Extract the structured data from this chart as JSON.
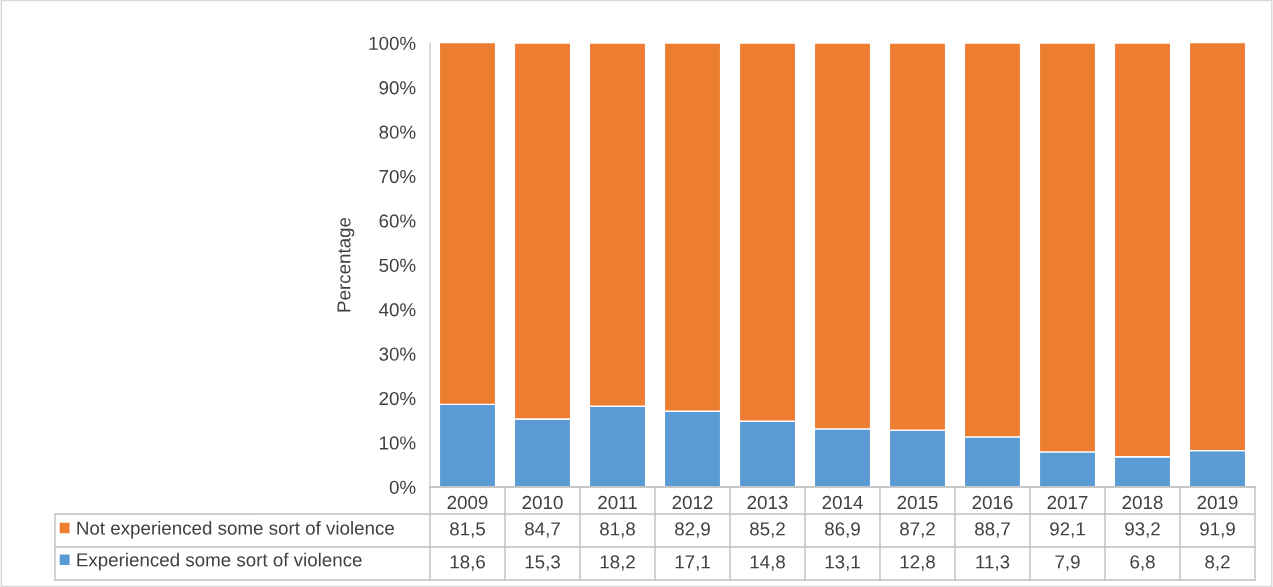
{
  "chart_data": {
    "type": "bar",
    "stacked": true,
    "ylabel": "Percentage",
    "categories": [
      "2009",
      "2010",
      "2011",
      "2012",
      "2013",
      "2014",
      "2015",
      "2016",
      "2017",
      "2018",
      "2019"
    ],
    "series": [
      {
        "name": "Experienced some sort of violence",
        "color": "#5b9bd5",
        "values": [
          18.6,
          15.3,
          18.2,
          17.1,
          14.8,
          13.1,
          12.8,
          11.3,
          7.9,
          6.8,
          8.2
        ],
        "value_labels": [
          "18,6",
          "15,3",
          "18,2",
          "17,1",
          "14,8",
          "13,1",
          "12,8",
          "11,3",
          "7,9",
          "6,8",
          "8,2"
        ]
      },
      {
        "name": "Not experienced some sort of violence",
        "color": "#ed7d31",
        "values": [
          81.5,
          84.7,
          81.8,
          82.9,
          85.2,
          86.9,
          87.2,
          88.7,
          92.1,
          93.2,
          91.9
        ],
        "value_labels": [
          "81,5",
          "84,7",
          "81,8",
          "82,9",
          "85,2",
          "86,9",
          "87,2",
          "88,7",
          "92,1",
          "93,2",
          "91,9"
        ]
      }
    ],
    "ylim": [
      0,
      100
    ],
    "yticks": [
      {
        "value": 0,
        "label": "0%"
      },
      {
        "value": 10,
        "label": "10%"
      },
      {
        "value": 20,
        "label": "20%"
      },
      {
        "value": 30,
        "label": "30%"
      },
      {
        "value": 40,
        "label": "40%"
      },
      {
        "value": 50,
        "label": "50%"
      },
      {
        "value": 60,
        "label": "60%"
      },
      {
        "value": 70,
        "label": "70%"
      },
      {
        "value": 80,
        "label": "80%"
      },
      {
        "value": 90,
        "label": "90%"
      },
      {
        "value": 100,
        "label": "100%"
      }
    ],
    "grid": false,
    "legend": "bottom"
  }
}
